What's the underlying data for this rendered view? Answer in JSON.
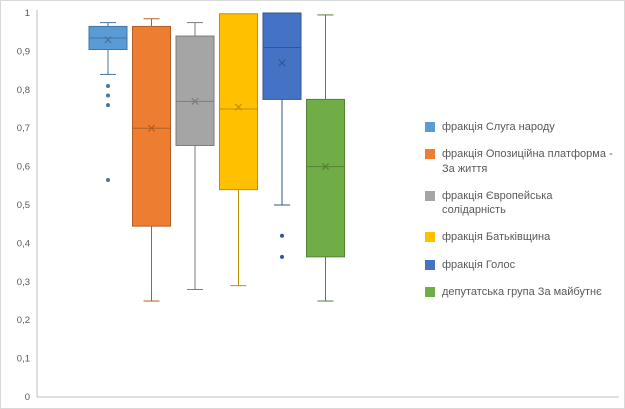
{
  "chart_data": {
    "type": "boxplot",
    "title": "",
    "xlabel": "",
    "ylabel": "",
    "ylim": [
      0,
      1
    ],
    "grid": false,
    "legend_position": "right",
    "decimal_separator": ",",
    "axis_label_color": "#595959",
    "axis_line_color": "#bfbfbf",
    "y_ticks": [
      {
        "label": "1",
        "value": 1.0
      },
      {
        "label": "0,9",
        "value": 0.9
      },
      {
        "label": "0,8",
        "value": 0.8
      },
      {
        "label": "0,7",
        "value": 0.7
      },
      {
        "label": "0,6",
        "value": 0.6
      },
      {
        "label": "0,5",
        "value": 0.5
      },
      {
        "label": "0,4",
        "value": 0.4
      },
      {
        "label": "0,3",
        "value": 0.3
      },
      {
        "label": "0,2",
        "value": 0.2
      },
      {
        "label": "0,1",
        "value": 0.1
      },
      {
        "label": "0",
        "value": 0.0
      }
    ],
    "series": [
      {
        "name": "фракція Слуга народу",
        "color": "#5B9BD5",
        "whisker_low": 0.84,
        "q1": 0.905,
        "median": 0.935,
        "q3": 0.965,
        "whisker_high": 0.975,
        "mean": 0.93,
        "outliers": [
          0.81,
          0.785,
          0.76,
          0.565
        ]
      },
      {
        "name": "фракція Опозиційна платформа - За життя",
        "color": "#ED7D31",
        "whisker_low": 0.25,
        "q1": 0.445,
        "median": 0.7,
        "q3": 0.965,
        "whisker_high": 0.985,
        "mean": 0.7,
        "outliers": []
      },
      {
        "name": "фракція Європейська солідарність",
        "color": "#A5A5A5",
        "whisker_low": 0.28,
        "q1": 0.655,
        "median": 0.77,
        "q3": 0.94,
        "whisker_high": 0.975,
        "mean": 0.77,
        "outliers": []
      },
      {
        "name": "фракція Батьківщина",
        "color": "#FFC000",
        "whisker_low": 0.29,
        "q1": 0.54,
        "median": 0.75,
        "q3": 0.998,
        "whisker_high": 0.998,
        "mean": 0.755,
        "outliers": []
      },
      {
        "name": "фракція Голос",
        "color": "#4472C4",
        "whisker_low": 0.5,
        "q1": 0.775,
        "median": 0.91,
        "q3": 1.0,
        "whisker_high": 1.0,
        "mean": 0.87,
        "outliers": [
          0.42,
          0.365
        ]
      },
      {
        "name": "депутатська група За майбутнє",
        "color": "#70AD47",
        "whisker_low": 0.25,
        "q1": 0.365,
        "median": 0.6,
        "q3": 0.775,
        "whisker_high": 0.995,
        "mean": 0.6,
        "outliers": []
      }
    ]
  }
}
